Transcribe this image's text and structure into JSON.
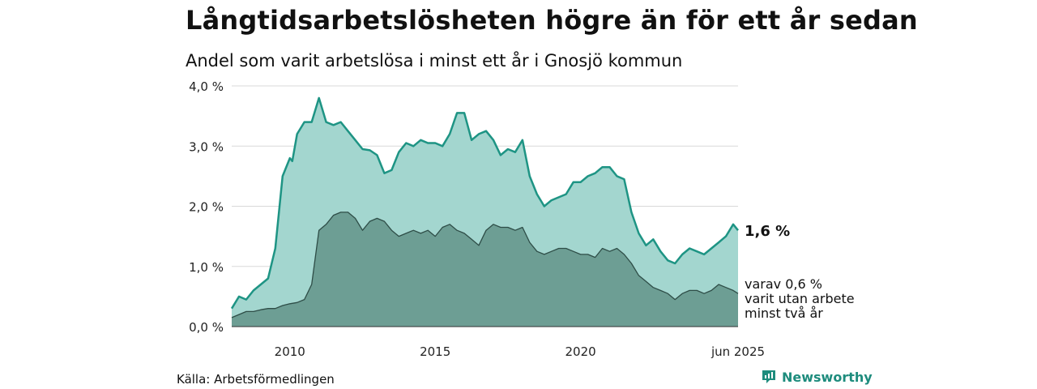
{
  "title": "Långtidsarbetslösheten högre än för ett år sedan",
  "subtitle": "Andel som varit arbetslösa i minst ett år i Gnosjö kommun",
  "source": "Källa: Arbetsförmedlingen",
  "brand": {
    "name": "Newsworthy",
    "icon": "newsworthy-logo-icon"
  },
  "colors": {
    "series_1_line": "#1e9484",
    "series_1_fill": "#a3d6cf",
    "series_2_line": "#2e4d47",
    "series_2_fill": "#6d9e94",
    "grid": "#d9d9d9",
    "brand": "#1e8c7d"
  },
  "chart_data": {
    "type": "area",
    "title": "Långtidsarbetslösheten högre än för ett år sedan",
    "subtitle": "Andel som varit arbetslösa i minst ett år i Gnosjö kommun",
    "xlabel": "",
    "ylabel": "",
    "xlim": [
      "2008-01",
      "2025-06"
    ],
    "ylim": [
      0,
      4.0
    ],
    "y_ticks": [
      {
        "value": 0,
        "label": "0,0 %"
      },
      {
        "value": 1,
        "label": "1,0 %"
      },
      {
        "value": 2,
        "label": "2,0 %"
      },
      {
        "value": 3,
        "label": "3,0 %"
      },
      {
        "value": 4,
        "label": "4,0 %"
      }
    ],
    "x_ticks": [
      {
        "value": "2010-01",
        "label": "2010"
      },
      {
        "value": "2015-01",
        "label": "2015"
      },
      {
        "value": "2020-01",
        "label": "2020"
      },
      {
        "value": "2025-06",
        "label": "jun 2025"
      }
    ],
    "grid": true,
    "legend": "none",
    "series": [
      {
        "x": [
          "2008-01",
          "2008-04",
          "2008-07",
          "2008-10",
          "2009-01",
          "2009-04",
          "2009-07",
          "2009-10",
          "2010-01",
          "2010-02",
          "2010-04",
          "2010-07",
          "2010-10",
          "2011-01",
          "2011-04",
          "2011-07",
          "2011-10",
          "2012-01",
          "2012-04",
          "2012-07",
          "2012-10",
          "2013-01",
          "2013-04",
          "2013-07",
          "2013-10",
          "2014-01",
          "2014-04",
          "2014-07",
          "2014-10",
          "2015-01",
          "2015-04",
          "2015-07",
          "2015-10",
          "2016-01",
          "2016-04",
          "2016-07",
          "2016-10",
          "2017-01",
          "2017-04",
          "2017-07",
          "2017-10",
          "2018-01",
          "2018-04",
          "2018-07",
          "2018-10",
          "2019-01",
          "2019-04",
          "2019-07",
          "2019-10",
          "2020-01",
          "2020-04",
          "2020-07",
          "2020-10",
          "2021-01",
          "2021-04",
          "2021-07",
          "2021-10",
          "2022-01",
          "2022-04",
          "2022-07",
          "2022-10",
          "2023-01",
          "2023-04",
          "2023-07",
          "2023-10",
          "2024-01",
          "2024-04",
          "2024-07",
          "2024-10",
          "2025-01",
          "2025-04",
          "2025-06"
        ],
        "values": [
          0.3,
          0.5,
          0.45,
          0.6,
          0.7,
          0.8,
          1.3,
          2.5,
          2.8,
          2.75,
          3.2,
          3.4,
          3.4,
          3.8,
          3.4,
          3.35,
          3.4,
          3.25,
          3.1,
          2.95,
          2.93,
          2.85,
          2.55,
          2.6,
          2.9,
          3.05,
          3.0,
          3.1,
          3.05,
          3.05,
          3.0,
          3.2,
          3.55,
          3.55,
          3.1,
          3.2,
          3.25,
          3.1,
          2.85,
          2.95,
          2.9,
          3.1,
          2.5,
          2.2,
          2.0,
          2.1,
          2.15,
          2.2,
          2.4,
          2.4,
          2.5,
          2.55,
          2.65,
          2.65,
          2.5,
          2.45,
          1.9,
          1.55,
          1.35,
          1.45,
          1.25,
          1.1,
          1.05,
          1.2,
          1.3,
          1.25,
          1.2,
          1.3,
          1.4,
          1.5,
          1.7,
          1.6
        ]
      },
      {
        "x": [
          "2008-01",
          "2008-04",
          "2008-07",
          "2008-10",
          "2009-01",
          "2009-04",
          "2009-07",
          "2009-10",
          "2010-01",
          "2010-04",
          "2010-07",
          "2010-10",
          "2011-01",
          "2011-04",
          "2011-07",
          "2011-10",
          "2012-01",
          "2012-04",
          "2012-07",
          "2012-10",
          "2013-01",
          "2013-04",
          "2013-07",
          "2013-10",
          "2014-01",
          "2014-04",
          "2014-07",
          "2014-10",
          "2015-01",
          "2015-04",
          "2015-07",
          "2015-10",
          "2016-01",
          "2016-04",
          "2016-07",
          "2016-10",
          "2017-01",
          "2017-04",
          "2017-07",
          "2017-10",
          "2018-01",
          "2018-04",
          "2018-07",
          "2018-10",
          "2019-01",
          "2019-04",
          "2019-07",
          "2019-10",
          "2020-01",
          "2020-04",
          "2020-07",
          "2020-10",
          "2021-01",
          "2021-04",
          "2021-07",
          "2021-10",
          "2022-01",
          "2022-04",
          "2022-07",
          "2022-10",
          "2023-01",
          "2023-04",
          "2023-07",
          "2023-10",
          "2024-01",
          "2024-04",
          "2024-07",
          "2024-10",
          "2025-01",
          "2025-04",
          "2025-06"
        ],
        "values": [
          0.15,
          0.2,
          0.25,
          0.25,
          0.28,
          0.3,
          0.3,
          0.35,
          0.38,
          0.4,
          0.45,
          0.7,
          1.6,
          1.7,
          1.85,
          1.9,
          1.9,
          1.8,
          1.6,
          1.75,
          1.8,
          1.75,
          1.6,
          1.5,
          1.55,
          1.6,
          1.55,
          1.6,
          1.5,
          1.65,
          1.7,
          1.6,
          1.55,
          1.45,
          1.35,
          1.6,
          1.7,
          1.65,
          1.65,
          1.6,
          1.65,
          1.4,
          1.25,
          1.2,
          1.25,
          1.3,
          1.3,
          1.25,
          1.2,
          1.2,
          1.15,
          1.3,
          1.25,
          1.3,
          1.2,
          1.05,
          0.85,
          0.75,
          0.65,
          0.6,
          0.55,
          0.45,
          0.55,
          0.6,
          0.6,
          0.55,
          0.6,
          0.7,
          0.65,
          0.6,
          0.55
        ]
      }
    ],
    "annotations": [
      {
        "series": 0,
        "label": "1,6 %"
      },
      {
        "series": 1,
        "label": [
          "varav 0,6 %",
          "varit utan arbete",
          "minst två år"
        ]
      }
    ]
  }
}
